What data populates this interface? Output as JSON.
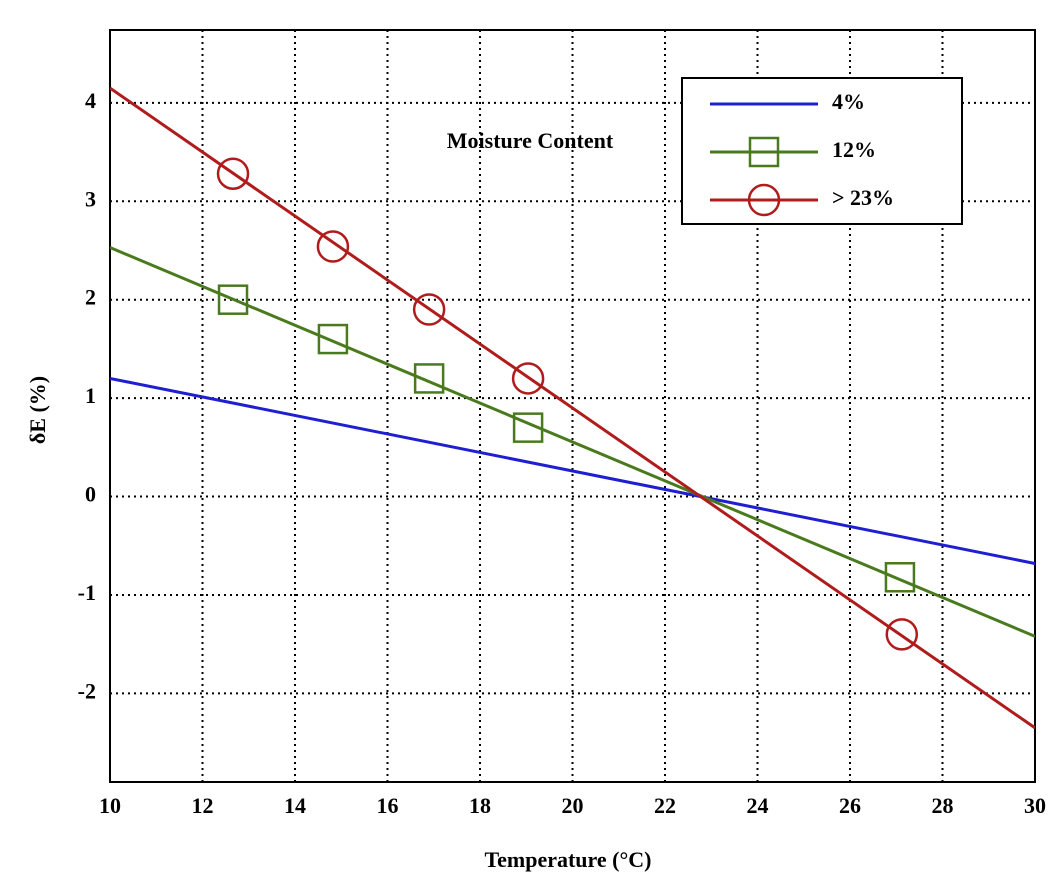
{
  "chart_data": {
    "type": "line",
    "annotation": "Moisture Content",
    "x_label": "Temperature (°C)",
    "y_label": "δE (%)",
    "xlim": [
      10,
      30
    ],
    "ylim": [
      -2.9,
      4.74
    ],
    "xticks": [
      10,
      12,
      14,
      16,
      18,
      20,
      22,
      24,
      26,
      28,
      30
    ],
    "yticks": [
      -2,
      -1,
      0,
      1,
      2,
      3,
      4
    ],
    "grid": true,
    "legend": "upper right",
    "series": [
      {
        "name": "4%",
        "color": "#1f1fd0",
        "marker": "none",
        "x": [
          10,
          30
        ],
        "values": [
          1.2,
          -0.68
        ]
      },
      {
        "name": "12%",
        "color": "#4a7a1e",
        "marker": "square",
        "x": [
          10,
          30
        ],
        "values": [
          2.53,
          -1.42
        ],
        "marker_x": [
          12.66,
          14.82,
          16.9,
          19.04,
          27.08
        ],
        "marker_values": [
          2.0,
          1.6,
          1.2,
          0.7,
          -0.82
        ]
      },
      {
        "name": "> 23%",
        "color": "#b01c1c",
        "marker": "circle",
        "x": [
          10,
          30
        ],
        "values": [
          4.15,
          -2.35
        ],
        "marker_x": [
          12.66,
          14.82,
          16.9,
          19.04,
          27.12
        ],
        "marker_values": [
          3.28,
          2.54,
          1.9,
          1.2,
          -1.4
        ]
      }
    ]
  }
}
